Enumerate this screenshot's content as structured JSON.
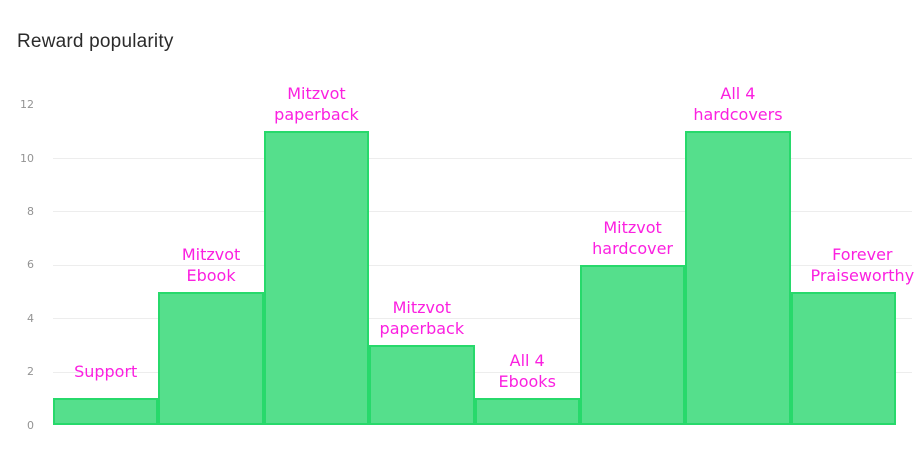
{
  "title": "Reward popularity",
  "colors": {
    "background": "#ffffff",
    "title": "#2b2b2b",
    "bar_fill": "#55df8c",
    "bar_border": "#27d96b",
    "label": "#fb20e0",
    "tick": "#939393",
    "gridline": "#ededed"
  },
  "chart_data": {
    "type": "bar",
    "title": "Reward popularity",
    "categories": [
      "Support",
      "Mitzvot Ebook",
      "Mitzvot paperback",
      "Mitzvot paperback",
      "All 4 Ebooks",
      "Mitzvot hardcover",
      "All 4 hardcovers",
      "Forever Praiseworthy"
    ],
    "values": [
      1,
      5,
      11,
      3,
      1,
      6,
      11,
      5
    ],
    "label_lines": [
      [
        "Support"
      ],
      [
        "Mitzvot",
        "Ebook"
      ],
      [
        "Mitzvot",
        "paperback"
      ],
      [
        "Mitzvot",
        "paperback"
      ],
      [
        "All 4",
        "Ebooks"
      ],
      [
        "Mitzvot",
        "hardcover"
      ],
      [
        "All 4",
        "hardcovers"
      ],
      [
        "Forever",
        "Praiseworthy"
      ]
    ],
    "xlabel": "",
    "ylabel": "",
    "ylim": [
      0,
      12
    ],
    "yticks": [
      0,
      2,
      4,
      6,
      8,
      10,
      12
    ],
    "gridlines_at": [
      2,
      4,
      6,
      8,
      10
    ],
    "legend_position": "none",
    "grid": "horizontal",
    "bar_gap": 0
  }
}
